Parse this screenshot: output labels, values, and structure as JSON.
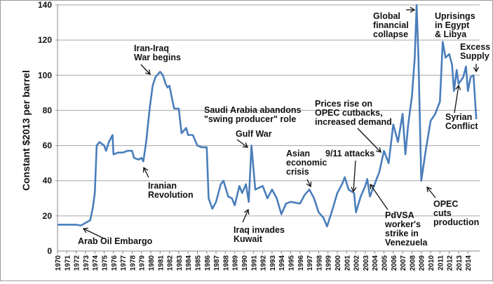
{
  "chart_data": {
    "type": "line",
    "title": "",
    "xlabel": "",
    "ylabel": "Constant $2013 per barrel",
    "ylim": [
      0,
      140
    ],
    "yticks": [
      "0",
      "20",
      "40",
      "60",
      "80",
      "100",
      "120",
      "140"
    ],
    "xticks": [
      "1970",
      "1971",
      "1972",
      "1973",
      "1974",
      "1975",
      "1976",
      "1977",
      "1978",
      "1979",
      "1980",
      "1981",
      "1982",
      "1983",
      "1984",
      "1985",
      "1986",
      "1987",
      "1988",
      "1989",
      "1990",
      "1991",
      "1992",
      "1993",
      "1994",
      "1995",
      "1996",
      "1997",
      "1998",
      "1999",
      "2000",
      "2001",
      "2002",
      "2003",
      "2004",
      "2005",
      "2006",
      "2007",
      "2008",
      "2009",
      "2010",
      "2011",
      "2012",
      "2013",
      "2014"
    ],
    "grid": "horizontal",
    "line_color": "#4a7ebb",
    "series": [
      {
        "x": [
          1970,
          1971,
          1972,
          1972.5,
          1973,
          1973.5,
          1973.8,
          1974,
          1974.2,
          1974.5,
          1975,
          1975.2,
          1975.5,
          1975.9,
          1976,
          1976.5,
          1977,
          1977.5,
          1978,
          1978.2,
          1978.7,
          1979,
          1979.2,
          1979.5,
          1979.9,
          1980.2,
          1980.5,
          1981,
          1981.3,
          1981.6,
          1981.8,
          1982,
          1982.5,
          1983,
          1983.3,
          1983.8,
          1984,
          1984.5,
          1985,
          1985.5,
          1986,
          1986.2,
          1986.6,
          1987,
          1987.5,
          1987.8,
          1988.3,
          1988.7,
          1989,
          1989.5,
          1989.8,
          1990.2,
          1990.5,
          1990.8,
          1991.2,
          1992,
          1992.5,
          1993,
          1993.5,
          1994,
          1994.5,
          1995,
          1996,
          1996.5,
          1997,
          1997.5,
          1998,
          1998.5,
          1998.9,
          1999.5,
          2000,
          2000.5,
          2000.8,
          2001.2,
          2001.8,
          2002,
          2002.5,
          2003,
          2003.2,
          2003.5,
          2004,
          2004.5,
          2005,
          2005.5,
          2006,
          2006.5,
          2007,
          2007.3,
          2007.6,
          2008,
          2008.3,
          2008.5,
          2008.7,
          2009,
          2009.5,
          2010,
          2010.5,
          2011,
          2011.3,
          2011.6,
          2012,
          2012.3,
          2012.5,
          2012.8,
          2013,
          2013.5,
          2013.8,
          2014,
          2014.3,
          2014.6,
          2014.9
        ],
        "y": [
          15,
          15,
          15,
          14.5,
          16,
          17.5,
          25,
          33,
          60,
          62,
          60,
          57,
          62,
          66,
          55,
          56,
          56,
          57,
          57,
          53,
          52,
          53,
          51,
          62,
          82,
          94,
          99,
          102,
          100,
          95,
          93,
          94,
          81,
          81,
          67,
          70,
          66,
          66,
          60,
          59,
          59,
          30,
          24,
          28,
          38,
          40,
          31,
          30,
          26,
          37,
          33,
          38,
          28,
          60,
          35,
          37,
          30,
          35,
          30,
          21,
          27,
          28,
          27,
          32,
          35,
          30,
          22,
          19,
          14,
          24,
          33,
          38,
          42,
          35,
          33,
          22,
          31,
          37,
          41,
          31,
          38,
          45,
          57,
          50,
          72,
          62,
          78,
          55,
          72,
          88,
          110,
          140,
          110,
          40,
          58,
          74,
          78,
          85,
          119,
          110,
          112,
          106,
          91,
          103,
          95,
          99,
          105,
          91,
          99,
          100,
          75
        ]
      }
    ],
    "annotations": [
      {
        "lines": [
          "Arab Oil Embargo"
        ]
      },
      {
        "lines": [
          "Iran-Iraq",
          "War begins"
        ]
      },
      {
        "lines": [
          "Iranian",
          "Revolution"
        ]
      },
      {
        "lines": [
          "Saudi Arabia abandons",
          "\"swing producer\" role"
        ]
      },
      {
        "lines": [
          "Gulf War"
        ]
      },
      {
        "lines": [
          "Iraq invades",
          "Kuwait"
        ]
      },
      {
        "lines": [
          "Asian",
          "economic",
          "crisis"
        ]
      },
      {
        "lines": [
          "9/11 attacks"
        ]
      },
      {
        "lines": [
          "Prices rise on",
          "OPEC cutbacks,",
          " increased demand"
        ]
      },
      {
        "lines": [
          "PdVSA",
          " worker's",
          "strike in",
          "Venezuela"
        ]
      },
      {
        "lines": [
          "Global",
          "financial",
          "collapse"
        ]
      },
      {
        "lines": [
          "Uprisings",
          "in Egypt",
          "& Libya"
        ]
      },
      {
        "lines": [
          "Excess",
          "Supply"
        ]
      },
      {
        "lines": [
          "Syrian",
          "Conflict"
        ]
      },
      {
        "lines": [
          "OPEC",
          "cuts",
          "production"
        ]
      }
    ]
  }
}
